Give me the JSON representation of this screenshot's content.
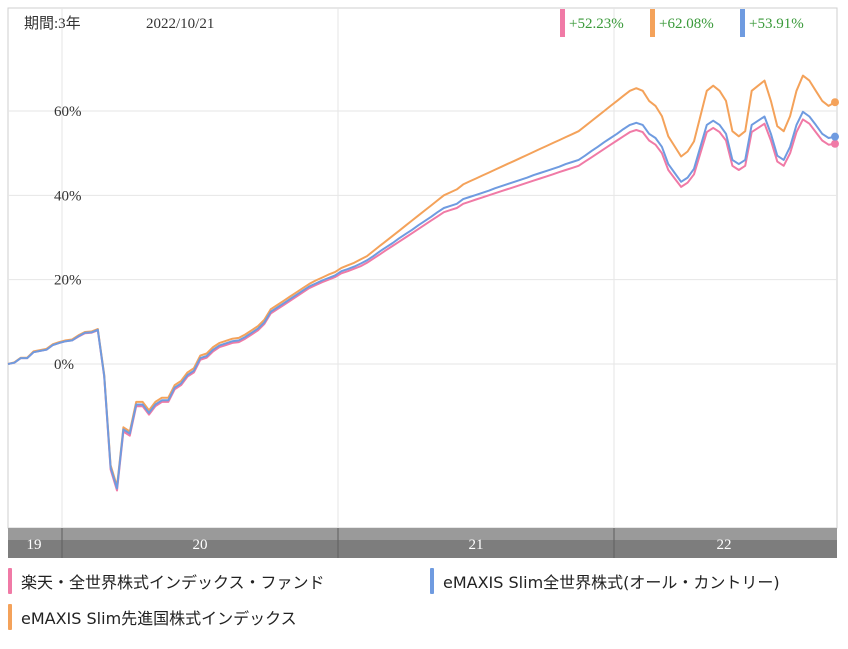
{
  "header": {
    "period_label": "期間:3年",
    "date_label": "2022/10/21"
  },
  "returns": [
    {
      "value": "+52.23%",
      "color": "#f07aa6"
    },
    {
      "value": "+62.08%",
      "color": "#f4a25a"
    },
    {
      "value": "+53.91%",
      "color": "#6f9be0"
    }
  ],
  "legend": [
    {
      "name": "楽天・全世界株式インデックス・ファンド",
      "color": "#f07aa6"
    },
    {
      "name": "eMAXIS Slim全世界株式(オール・カントリー)",
      "color": "#6f9be0"
    },
    {
      "name": "eMAXIS Slim先進国株式インデックス",
      "color": "#f4a25a"
    }
  ],
  "chart_data": {
    "type": "line",
    "yticks": [
      "0%",
      "20%",
      "40%",
      "60%"
    ],
    "ylim": [
      -40,
      85
    ],
    "xticks": [
      "19",
      "20",
      "21",
      "22"
    ],
    "grid": true,
    "series": [
      {
        "name": "楽天・全世界株式インデックス・ファンド",
        "color": "#f07aa6",
        "values": [
          0,
          0.3,
          1.4,
          1.4,
          2.8,
          3.1,
          3.4,
          4.5,
          5.0,
          5.4,
          5.6,
          6.5,
          7.3,
          7.4,
          8.0,
          -3,
          -25,
          -30,
          -16,
          -17,
          -10,
          -10,
          -12,
          -10,
          -9,
          -9,
          -6,
          -5,
          -3,
          -2,
          1,
          1.5,
          3,
          4,
          4.5,
          5,
          5.2,
          6,
          7,
          8,
          9.5,
          12,
          13,
          14,
          15,
          16,
          17,
          18,
          18.7,
          19.4,
          20,
          20.6,
          21.5,
          22,
          22.6,
          23.2,
          24,
          25,
          26,
          27,
          28,
          29,
          30,
          31,
          32,
          33,
          34,
          35,
          36,
          36.5,
          37,
          38,
          38.5,
          39,
          39.5,
          40,
          40.5,
          41,
          41.5,
          42,
          42.5,
          43,
          43.5,
          44,
          44.5,
          45,
          45.5,
          46,
          46.5,
          47,
          48,
          49,
          50,
          51,
          52,
          53,
          54,
          55,
          55.5,
          55,
          53,
          52,
          50,
          46,
          44,
          42,
          43,
          45,
          50,
          55,
          56,
          55,
          53,
          47,
          46,
          47,
          55,
          56,
          57,
          53,
          48,
          47,
          50,
          55,
          58,
          57,
          55,
          53,
          52,
          52.23
        ]
      },
      {
        "name": "eMAXIS Slim先進国株式インデックス",
        "color": "#f4a25a",
        "values": [
          0,
          0.4,
          1.5,
          1.5,
          3.0,
          3.3,
          3.6,
          4.7,
          5.2,
          5.6,
          5.8,
          6.8,
          7.6,
          7.7,
          8.3,
          -2.5,
          -24,
          -29,
          -15,
          -16,
          -9,
          -9,
          -11,
          -9,
          -8,
          -8,
          -5,
          -4,
          -2,
          -1,
          2,
          2.5,
          4,
          5,
          5.5,
          6,
          6.2,
          7,
          8,
          9,
          10.5,
          13,
          14,
          15,
          16,
          17,
          18,
          19,
          19.8,
          20.5,
          21.2,
          21.8,
          22.8,
          23.4,
          24,
          24.8,
          25.6,
          26.8,
          28,
          29.2,
          30.4,
          31.6,
          32.8,
          34,
          35.2,
          36.4,
          37.6,
          38.8,
          40,
          40.7,
          41.4,
          42.6,
          43.3,
          44,
          44.7,
          45.4,
          46.1,
          46.8,
          47.5,
          48.2,
          48.9,
          49.6,
          50.3,
          51,
          51.7,
          52.4,
          53.1,
          53.8,
          54.5,
          55.2,
          56.4,
          57.6,
          58.8,
          60,
          61.2,
          62.4,
          63.6,
          64.8,
          65.4,
          64.8,
          62.4,
          61.2,
          58.8,
          54,
          51.6,
          49.2,
          50.4,
          52.8,
          58.8,
          64.8,
          66,
          64.8,
          62.4,
          55.2,
          54,
          55.2,
          64.8,
          66,
          67.2,
          62.4,
          56.4,
          55.2,
          58.8,
          64.8,
          68.4,
          67.2,
          64.8,
          62.4,
          61.2,
          62.08
        ]
      },
      {
        "name": "eMAXIS Slim全世界株式(オール・カントリー)",
        "color": "#6f9be0",
        "values": [
          0,
          0.3,
          1.4,
          1.4,
          2.8,
          3.1,
          3.4,
          4.5,
          5.0,
          5.4,
          5.6,
          6.6,
          7.4,
          7.5,
          8.1,
          -2.8,
          -24.5,
          -29.5,
          -15.5,
          -16.5,
          -9.6,
          -9.6,
          -11.6,
          -9.6,
          -8.6,
          -8.6,
          -5.6,
          -4.6,
          -2.6,
          -1.6,
          1.4,
          1.9,
          3.4,
          4.4,
          4.9,
          5.4,
          5.6,
          6.4,
          7.4,
          8.4,
          9.9,
          12.4,
          13.4,
          14.4,
          15.4,
          16.4,
          17.4,
          18.4,
          19.1,
          19.8,
          20.4,
          21,
          22,
          22.5,
          23.1,
          23.8,
          24.6,
          25.6,
          26.7,
          27.7,
          28.7,
          29.8,
          30.8,
          31.8,
          32.9,
          33.9,
          34.9,
          36,
          37,
          37.5,
          38,
          39.1,
          39.6,
          40.1,
          40.6,
          41.1,
          41.7,
          42.2,
          42.7,
          43.2,
          43.7,
          44.2,
          44.8,
          45.3,
          45.8,
          46.3,
          46.8,
          47.4,
          47.9,
          48.4,
          49.4,
          50.5,
          51.5,
          52.6,
          53.6,
          54.6,
          55.7,
          56.7,
          57.2,
          56.7,
          54.6,
          53.6,
          51.5,
          47.4,
          45.3,
          43.2,
          44.2,
          46.3,
          51.5,
          56.7,
          57.7,
          56.7,
          54.6,
          48.4,
          47.4,
          48.4,
          56.7,
          57.7,
          58.7,
          54.6,
          49.4,
          48.4,
          51.5,
          56.7,
          59.8,
          58.7,
          56.7,
          54.6,
          53.6,
          53.91
        ]
      }
    ]
  }
}
